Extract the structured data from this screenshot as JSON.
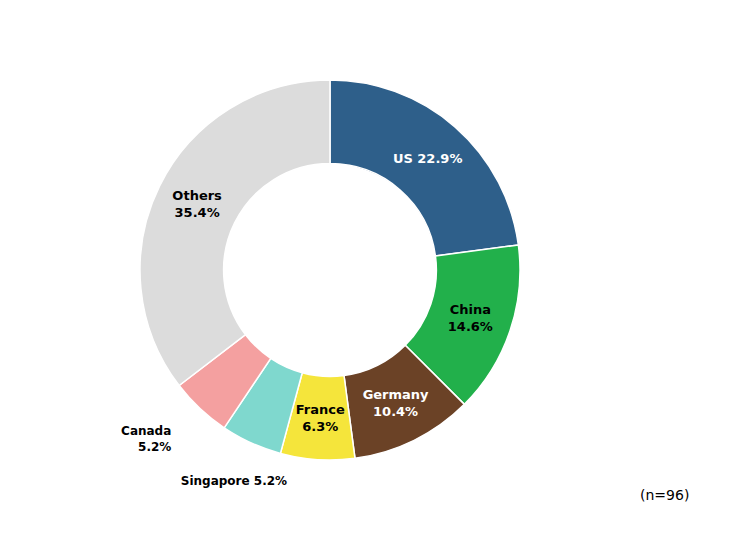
{
  "chart_data": {
    "type": "pie",
    "categories": [
      "US",
      "China",
      "Germany",
      "France",
      "Singapore",
      "Canada",
      "Others"
    ],
    "values": [
      22.9,
      14.6,
      10.4,
      6.3,
      5.2,
      5.2,
      35.4
    ],
    "value_labels": [
      "US 22.9%",
      "China\n14.6%",
      "Germany\n10.4%",
      "France\n6.3%",
      "Singapore 5.2%",
      "Canada\n5.2%",
      "Others\n35.4%"
    ],
    "colors": [
      "#2e5f8a",
      "#22b04b",
      "#6b4226",
      "#f5e53b",
      "#7fd8ce",
      "#f4a0a0",
      "#dcdcdc"
    ],
    "data_labels": true,
    "annotation": "(n=96)"
  }
}
